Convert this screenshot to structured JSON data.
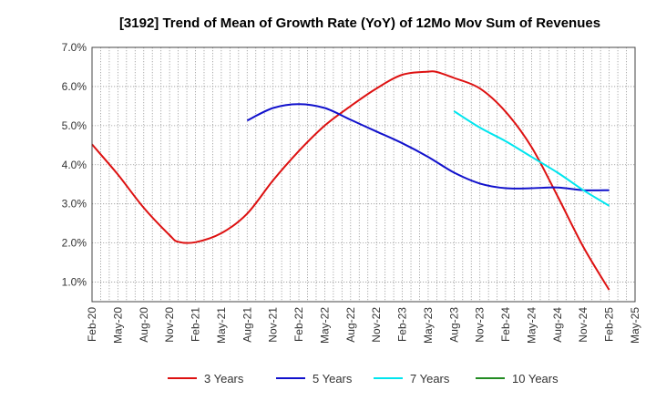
{
  "chart_data": {
    "type": "line",
    "title": "[3192]  Trend of Mean of Growth Rate (YoY) of 12Mo Mov Sum of Revenues",
    "xlabel": "",
    "ylabel": "",
    "ylim": [
      0.5,
      7.0
    ],
    "y_ticks": [
      1.0,
      2.0,
      3.0,
      4.0,
      5.0,
      6.0,
      7.0
    ],
    "y_tick_labels": [
      "1.0%",
      "2.0%",
      "3.0%",
      "4.0%",
      "5.0%",
      "6.0%",
      "7.0%"
    ],
    "x_start": "Feb-20",
    "x_ticks": [
      "Feb-20",
      "May-20",
      "Aug-20",
      "Nov-20",
      "Feb-21",
      "May-21",
      "Aug-21",
      "Nov-21",
      "Feb-22",
      "May-22",
      "Aug-22",
      "Nov-22",
      "Feb-23",
      "May-23",
      "Aug-23",
      "Nov-23",
      "Feb-24",
      "May-24",
      "Aug-24",
      "Nov-24",
      "Feb-25",
      "May-25"
    ],
    "grid": true,
    "legend_position": "bottom",
    "series": [
      {
        "name": "3 Years",
        "color": "#dd1111",
        "x": [
          0,
          3,
          6,
          9,
          10,
          12,
          15,
          18,
          21,
          24,
          27,
          30,
          33,
          36,
          39,
          40,
          42,
          45,
          48,
          51,
          54,
          57,
          60
        ],
        "values": [
          4.52,
          3.75,
          2.9,
          2.2,
          2.03,
          2.02,
          2.25,
          2.75,
          3.6,
          4.35,
          5.0,
          5.5,
          5.95,
          6.3,
          6.38,
          6.37,
          6.22,
          5.95,
          5.35,
          4.45,
          3.2,
          1.9,
          0.8
        ]
      },
      {
        "name": "5 Years",
        "color": "#1111cc",
        "x": [
          18,
          21,
          24,
          27,
          30,
          33,
          36,
          39,
          42,
          45,
          48,
          51,
          54,
          57,
          60
        ],
        "values": [
          5.13,
          5.45,
          5.55,
          5.45,
          5.15,
          4.85,
          4.55,
          4.2,
          3.8,
          3.52,
          3.4,
          3.4,
          3.42,
          3.35,
          3.35
        ]
      },
      {
        "name": "7 Years",
        "color": "#00e5ee",
        "x": [
          42,
          45,
          48,
          51,
          54,
          57,
          60
        ],
        "values": [
          5.37,
          4.95,
          4.6,
          4.2,
          3.8,
          3.35,
          2.95
        ]
      },
      {
        "name": "10 Years",
        "color": "#228b22",
        "x": [],
        "values": []
      }
    ]
  }
}
